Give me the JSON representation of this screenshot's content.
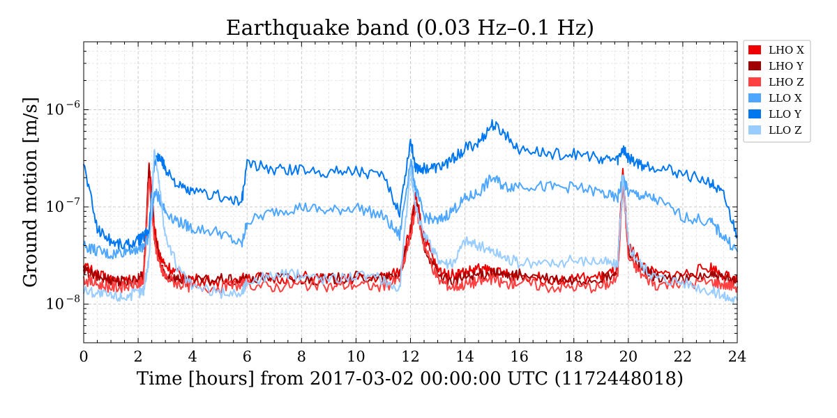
{
  "chart_data": {
    "type": "line",
    "title": "Earthquake band (0.03 Hz–0.1 Hz)",
    "xlabel": "Time [hours] from 2017-03-02 00:00:00 UTC (1172448018)",
    "ylabel": "Ground motion [m/s]",
    "xlim": [
      0,
      24
    ],
    "ylim": [
      4e-09,
      5e-06
    ],
    "yscale": "log",
    "grid": true,
    "legend_position": "outside-right-top",
    "x_ticks": [
      0,
      2,
      4,
      6,
      8,
      10,
      12,
      14,
      16,
      18,
      20,
      22,
      24
    ],
    "x_tick_labels": [
      "0",
      "2",
      "4",
      "6",
      "8",
      "10",
      "12",
      "14",
      "16",
      "18",
      "20",
      "22",
      "24"
    ],
    "y_ticks": [
      1e-08,
      1e-07,
      1e-06
    ],
    "y_tick_labels": [
      {
        "base": "10",
        "exp": "−8"
      },
      {
        "base": "10",
        "exp": "−7"
      },
      {
        "base": "10",
        "exp": "−6"
      }
    ],
    "x": [
      0,
      0.5,
      1,
      1.5,
      2,
      2.2,
      2.4,
      2.6,
      2.8,
      3,
      3.5,
      4,
      5,
      5.8,
      6,
      7,
      8,
      9,
      10,
      11,
      11.6,
      12,
      12.2,
      12.5,
      13,
      13.5,
      14,
      14.5,
      15,
      15.5,
      16,
      17,
      18,
      19,
      19.6,
      19.8,
      20,
      20.5,
      21,
      22,
      23,
      23.5,
      24
    ],
    "series": [
      {
        "name": "LHO X",
        "color": "#ee0000",
        "values": [
          2.5e-08,
          2e-08,
          1.8e-08,
          1.7e-08,
          1.8e-08,
          1.9e-08,
          2.8e-07,
          6e-08,
          3e-08,
          2.5e-08,
          2e-08,
          1.8e-08,
          1.7e-08,
          1.8e-08,
          1.9e-08,
          1.8e-08,
          1.9e-08,
          1.8e-08,
          1.8e-08,
          1.9e-08,
          2.2e-08,
          6e-08,
          1.3e-07,
          5e-08,
          2.2e-08,
          2e-08,
          2.1e-08,
          2.3e-08,
          2.2e-08,
          2e-08,
          2e-08,
          1.8e-08,
          1.8e-08,
          1.9e-08,
          2.2e-08,
          2.3e-07,
          4e-08,
          2.5e-08,
          2e-08,
          2e-08,
          2.4e-08,
          2e-08,
          1.7e-08
        ]
      },
      {
        "name": "LHO Y",
        "color": "#a00000",
        "values": [
          2.2e-08,
          1.9e-08,
          1.8e-08,
          1.7e-08,
          1.8e-08,
          2e-08,
          2.4e-07,
          5e-08,
          2.6e-08,
          2e-08,
          1.8e-08,
          1.7e-08,
          1.8e-08,
          1.7e-08,
          1.8e-08,
          1.9e-08,
          1.8e-08,
          1.8e-08,
          1.9e-08,
          1.8e-08,
          2e-08,
          5e-08,
          1.1e-07,
          4e-08,
          2e-08,
          1.7e-08,
          1.9e-08,
          2e-08,
          2.1e-08,
          1.9e-08,
          2e-08,
          1.8e-08,
          1.7e-08,
          1.8e-08,
          2e-08,
          1.8e-07,
          3.5e-08,
          2.2e-08,
          1.9e-08,
          1.8e-08,
          2e-08,
          1.8e-08,
          1.7e-08
        ]
      },
      {
        "name": "LHO Z",
        "color": "#ff4040",
        "values": [
          1.8e-08,
          1.6e-08,
          1.5e-08,
          1.5e-08,
          1.6e-08,
          1.7e-08,
          2e-07,
          4.5e-08,
          2.4e-08,
          1.9e-08,
          1.6e-08,
          1.5e-08,
          1.5e-08,
          1.6e-08,
          1.6e-08,
          1.5e-08,
          1.6e-08,
          1.5e-08,
          1.6e-08,
          1.5e-08,
          1.8e-08,
          5e-08,
          1e-07,
          4e-08,
          1.8e-08,
          1.5e-08,
          1.6e-08,
          1.7e-08,
          1.8e-08,
          1.6e-08,
          1.7e-08,
          1.5e-08,
          1.5e-08,
          1.5e-08,
          1.8e-08,
          2e-07,
          3e-08,
          2e-08,
          1.6e-08,
          1.6e-08,
          1.7e-08,
          1.6e-08,
          1.5e-08
        ]
      },
      {
        "name": "LLO X",
        "color": "#4da6ff",
        "values": [
          4e-08,
          3.5e-08,
          3.2e-08,
          3.5e-08,
          3.8e-08,
          4e-08,
          5e-08,
          1.4e-07,
          1.2e-07,
          9e-08,
          7e-08,
          6e-08,
          5.5e-08,
          4e-08,
          7e-08,
          9e-08,
          1e-07,
          9e-08,
          1e-07,
          8e-08,
          5e-08,
          3e-07,
          1.5e-07,
          8e-08,
          7e-08,
          9e-08,
          1.2e-07,
          1.4e-07,
          2e-07,
          1.6e-07,
          1.7e-07,
          1.6e-07,
          1.6e-07,
          1.4e-07,
          1.2e-07,
          2e-07,
          1.4e-07,
          1.3e-07,
          1.2e-07,
          8e-08,
          7e-08,
          5e-08,
          3.5e-08
        ]
      },
      {
        "name": "LLO Y",
        "color": "#0077ee",
        "values": [
          2.8e-07,
          6e-08,
          4.5e-08,
          4e-08,
          4.5e-08,
          5e-08,
          6e-08,
          3e-07,
          3.2e-07,
          2.5e-07,
          1.6e-07,
          1.4e-07,
          1.3e-07,
          1.1e-07,
          2.8e-07,
          2.4e-07,
          2.4e-07,
          2.3e-07,
          2.4e-07,
          2e-07,
          9e-08,
          4.8e-07,
          2.5e-07,
          2.5e-07,
          2.5e-07,
          3e-07,
          4e-07,
          4.5e-07,
          7e-07,
          5.5e-07,
          4e-07,
          3.5e-07,
          3.5e-07,
          3.2e-07,
          3e-07,
          4e-07,
          3.2e-07,
          2.7e-07,
          2.6e-07,
          2.2e-07,
          1.8e-07,
          1.3e-07,
          5e-08
        ]
      },
      {
        "name": "LLO Z",
        "color": "#99ccff",
        "values": [
          1.4e-08,
          1.3e-08,
          1.2e-08,
          1.2e-08,
          1.3e-08,
          1.4e-08,
          3e-08,
          4e-07,
          1.5e-07,
          5e-08,
          2.2e-08,
          1.5e-08,
          1.3e-08,
          1.3e-08,
          1.7e-08,
          2e-08,
          2e-08,
          1.8e-08,
          2e-08,
          1.8e-08,
          1.4e-08,
          2.5e-07,
          1e-07,
          5e-08,
          3e-08,
          2.5e-08,
          4.5e-08,
          4e-08,
          3.5e-08,
          3e-08,
          2.6e-08,
          2.6e-08,
          2.8e-08,
          2.8e-08,
          2.5e-08,
          2e-07,
          4e-08,
          2.5e-08,
          1.9e-08,
          1.7e-08,
          1.4e-08,
          1.2e-08,
          1.1e-08
        ]
      }
    ]
  }
}
